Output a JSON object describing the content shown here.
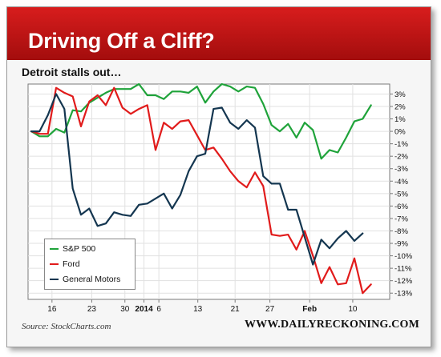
{
  "title": "Driving Off a Cliff?",
  "subtitle": "Detroit stalls out…",
  "source": "Source: StockCharts.com",
  "brand": "WWW.DAILYRECKONING.COM",
  "chart_data": {
    "type": "line",
    "ylim": [
      -13.5,
      3.8
    ],
    "xlim": [
      0,
      42
    ],
    "y_ticks": [
      3,
      2,
      1,
      0,
      -1,
      -2,
      -3,
      -4,
      -5,
      -6,
      -7,
      -8,
      -9,
      -10,
      -11,
      -12,
      -13
    ],
    "y_tick_suffix": "%",
    "x_ticks": [
      {
        "label": "16",
        "x": 2.5,
        "bold": false
      },
      {
        "label": "23",
        "x": 7.3,
        "bold": false
      },
      {
        "label": "30",
        "x": 11.3,
        "bold": false
      },
      {
        "label": "2014",
        "x": 13.6,
        "bold": true
      },
      {
        "label": "6",
        "x": 15.4,
        "bold": false
      },
      {
        "label": "13",
        "x": 20.1,
        "bold": false
      },
      {
        "label": "21",
        "x": 24.6,
        "bold": false
      },
      {
        "label": "27",
        "x": 28.8,
        "bold": false
      },
      {
        "label": "Feb",
        "x": 33.6,
        "bold": true
      },
      {
        "label": "10",
        "x": 38.8,
        "bold": false
      }
    ],
    "grid": true,
    "legend_position": "bottom-left",
    "series": [
      {
        "name": "S&P 500",
        "color": "#1fa33a",
        "points": [
          [
            0,
            0
          ],
          [
            1,
            -0.4
          ],
          [
            2,
            -0.4
          ],
          [
            3,
            0.2
          ],
          [
            4,
            -0.1
          ],
          [
            5,
            1.7
          ],
          [
            6,
            1.6
          ],
          [
            7,
            2.3
          ],
          [
            8,
            2.7
          ],
          [
            9,
            3.1
          ],
          [
            10,
            3.4
          ],
          [
            11,
            3.4
          ],
          [
            12,
            3.4
          ],
          [
            13,
            3.8
          ],
          [
            14,
            2.9
          ],
          [
            15,
            2.9
          ],
          [
            16,
            2.6
          ],
          [
            17,
            3.2
          ],
          [
            18,
            3.2
          ],
          [
            19,
            3.1
          ],
          [
            20,
            3.6
          ],
          [
            21,
            2.3
          ],
          [
            22,
            3.2
          ],
          [
            23,
            3.8
          ],
          [
            24,
            3.6
          ],
          [
            25,
            3.2
          ],
          [
            26,
            3.6
          ],
          [
            27,
            3.5
          ],
          [
            28,
            2.2
          ],
          [
            29,
            0.5
          ],
          [
            30,
            0
          ],
          [
            31,
            0.6
          ],
          [
            32,
            -0.5
          ],
          [
            33,
            0.7
          ],
          [
            34,
            0.1
          ],
          [
            35,
            -2.2
          ],
          [
            36,
            -1.5
          ],
          [
            37,
            -1.7
          ],
          [
            38,
            -0.5
          ],
          [
            39,
            0.8
          ],
          [
            40,
            1
          ],
          [
            41,
            2.1
          ]
        ]
      },
      {
        "name": "Ford",
        "color": "#e11b1b",
        "points": [
          [
            0,
            0
          ],
          [
            1,
            -0.2
          ],
          [
            2,
            -0.2
          ],
          [
            3,
            3.5
          ],
          [
            4,
            3.1
          ],
          [
            5,
            2.8
          ],
          [
            6,
            0.4
          ],
          [
            7,
            2.4
          ],
          [
            8,
            2.9
          ],
          [
            9,
            2.1
          ],
          [
            10,
            3.5
          ],
          [
            11,
            1.9
          ],
          [
            12,
            1.4
          ],
          [
            13,
            1.8
          ],
          [
            14,
            2.1
          ],
          [
            15,
            -1.5
          ],
          [
            16,
            0.7
          ],
          [
            17,
            0.2
          ],
          [
            18,
            0.8
          ],
          [
            19,
            0.9
          ],
          [
            20,
            -0.3
          ],
          [
            21,
            -1.5
          ],
          [
            22,
            -1.3
          ],
          [
            23,
            -2.2
          ],
          [
            24,
            -3.2
          ],
          [
            25,
            -4
          ],
          [
            26,
            -4.5
          ],
          [
            27,
            -3.3
          ],
          [
            28,
            -4.4
          ],
          [
            29,
            -8.3
          ],
          [
            30,
            -8.4
          ],
          [
            31,
            -8.3
          ],
          [
            32,
            -9.5
          ],
          [
            33,
            -8
          ],
          [
            34,
            -10
          ],
          [
            35,
            -12.2
          ],
          [
            36,
            -10.9
          ],
          [
            37,
            -12.3
          ],
          [
            38,
            -12.2
          ],
          [
            39,
            -10.2
          ],
          [
            40,
            -13
          ],
          [
            41,
            -12.3
          ]
        ]
      },
      {
        "name": "General Motors",
        "color": "#143650",
        "points": [
          [
            0,
            0
          ],
          [
            1,
            0
          ],
          [
            2,
            1.3
          ],
          [
            3,
            3
          ],
          [
            4,
            1.8
          ],
          [
            5,
            -4.6
          ],
          [
            6,
            -6.7
          ],
          [
            7,
            -6.2
          ],
          [
            8,
            -7.6
          ],
          [
            9,
            -7.4
          ],
          [
            10,
            -6.5
          ],
          [
            11,
            -6.7
          ],
          [
            12,
            -6.8
          ],
          [
            13,
            -5.9
          ],
          [
            14,
            -5.8
          ],
          [
            15,
            -5.4
          ],
          [
            16,
            -5
          ],
          [
            17,
            -6.2
          ],
          [
            18,
            -5.1
          ],
          [
            19,
            -3.2
          ],
          [
            20,
            -2
          ],
          [
            21,
            -1.8
          ],
          [
            22,
            1.8
          ],
          [
            23,
            1.9
          ],
          [
            24,
            0.7
          ],
          [
            25,
            0.2
          ],
          [
            26,
            0.9
          ],
          [
            27,
            0.3
          ],
          [
            28,
            -3.6
          ],
          [
            29,
            -4.2
          ],
          [
            30,
            -4.2
          ],
          [
            31,
            -6.3
          ],
          [
            32,
            -6.3
          ],
          [
            33,
            -8.5
          ],
          [
            34,
            -10.7
          ],
          [
            35,
            -8.7
          ],
          [
            36,
            -9.4
          ],
          [
            37,
            -8.6
          ],
          [
            38,
            -8
          ],
          [
            39,
            -8.8
          ],
          [
            40,
            -8.2
          ]
        ]
      }
    ]
  }
}
